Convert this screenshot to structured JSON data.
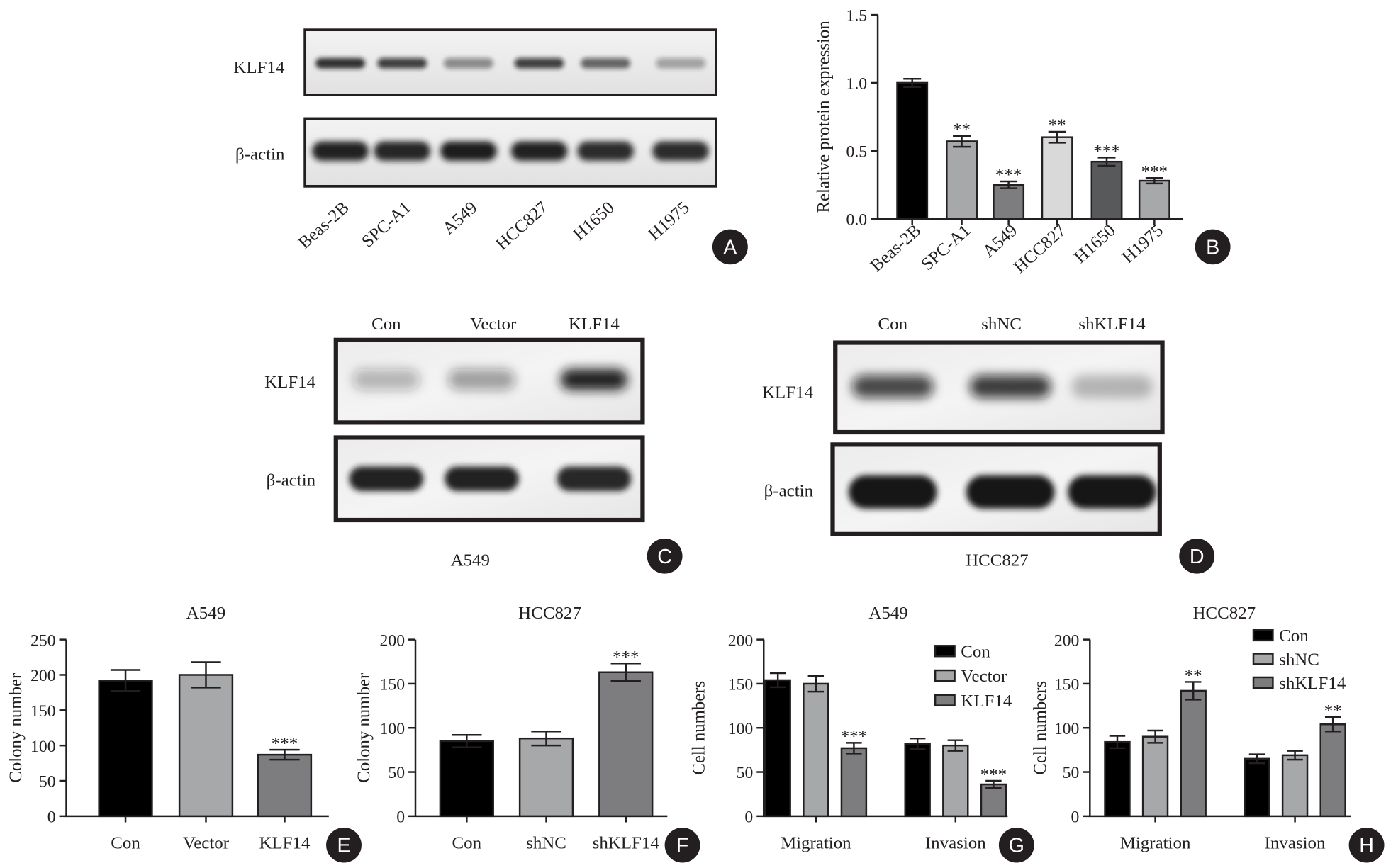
{
  "panel_labels": [
    "A",
    "B",
    "C",
    "D",
    "E",
    "F",
    "G",
    "H"
  ],
  "panel_a": {
    "row_labels": [
      "KLF14",
      "β-actin"
    ],
    "lanes": [
      {
        "label": "Beas-2B",
        "klf14_band": 0.88,
        "actin_band": 0.95
      },
      {
        "label": "SPC-A1",
        "klf14_band": 0.78,
        "actin_band": 0.93
      },
      {
        "label": "A549",
        "klf14_band": 0.45,
        "actin_band": 0.97
      },
      {
        "label": "HCC827",
        "klf14_band": 0.78,
        "actin_band": 0.95
      },
      {
        "label": "H1650",
        "klf14_band": 0.62,
        "actin_band": 0.9
      },
      {
        "label": "H1975",
        "klf14_band": 0.35,
        "actin_band": 0.9
      }
    ]
  },
  "panel_c": {
    "cell_line": "A549",
    "row_labels": [
      "KLF14",
      "β-actin"
    ],
    "lanes": [
      {
        "label": "Con",
        "klf14_band": 0.28,
        "actin_band": 0.95
      },
      {
        "label": "Vector",
        "klf14_band": 0.38,
        "actin_band": 0.95
      },
      {
        "label": "KLF14",
        "klf14_band": 0.95,
        "actin_band": 0.92
      }
    ]
  },
  "panel_d": {
    "cell_line": "HCC827",
    "row_labels": [
      "KLF14",
      "β-actin"
    ],
    "lanes": [
      {
        "label": "Con",
        "klf14_band": 0.75,
        "actin_band": 1.0
      },
      {
        "label": "shNC",
        "klf14_band": 0.8,
        "actin_band": 1.0
      },
      {
        "label": "shKLF14",
        "klf14_band": 0.25,
        "actin_band": 1.0
      }
    ]
  },
  "chart_data": [
    {
      "letter": "B",
      "type": "bar",
      "categories": [
        "Beas-2B",
        "SPC-A1",
        "A549",
        "HCC827",
        "H1650",
        "H1975"
      ],
      "values": [
        1.0,
        0.57,
        0.25,
        0.6,
        0.42,
        0.28
      ],
      "errors": [
        0.03,
        0.04,
        0.025,
        0.04,
        0.03,
        0.02
      ],
      "significance": [
        "",
        "**",
        "***",
        "**",
        "***",
        "***"
      ],
      "bar_colors": [
        "#000000",
        "#a7a8aa",
        "#7d7d7f",
        "#d9d9d9",
        "#58595b",
        "#a7a8aa"
      ],
      "ylabel": "Relative protein expression",
      "ylim": [
        0,
        1.5
      ],
      "yticks": [
        0,
        0.5,
        1.0,
        1.5
      ],
      "ytick_labels": [
        "0.0",
        "0.5",
        "1.0",
        "1.5"
      ]
    },
    {
      "letter": "E",
      "type": "bar",
      "title": "A549",
      "categories": [
        "Con",
        "Vector",
        "KLF14"
      ],
      "values": [
        192,
        200,
        87
      ],
      "errors": [
        15,
        18,
        7
      ],
      "significance": [
        "",
        "",
        "***"
      ],
      "bar_colors": [
        "#000000",
        "#a7a8aa",
        "#7d7d7f"
      ],
      "ylabel": "Colony number",
      "ylim": [
        0,
        250
      ],
      "yticks": [
        0,
        50,
        100,
        150,
        200,
        250
      ],
      "ytick_labels": [
        "0",
        "50",
        "100",
        "150",
        "200",
        "250"
      ]
    },
    {
      "letter": "F",
      "type": "bar",
      "title": "HCC827",
      "categories": [
        "Con",
        "shNC",
        "shKLF14"
      ],
      "values": [
        85,
        88,
        163
      ],
      "errors": [
        7,
        8,
        10
      ],
      "significance": [
        "",
        "",
        "***"
      ],
      "bar_colors": [
        "#000000",
        "#a7a8aa",
        "#7d7d7f"
      ],
      "ylabel": "Colony number",
      "ylim": [
        0,
        200
      ],
      "yticks": [
        0,
        50,
        100,
        150,
        200
      ],
      "ytick_labels": [
        "0",
        "50",
        "100",
        "150",
        "200"
      ]
    },
    {
      "letter": "G",
      "type": "bar",
      "title": "A549",
      "categories": [
        "Migration",
        "Invasion"
      ],
      "series": [
        {
          "name": "Con",
          "values": [
            154,
            82
          ],
          "errors": [
            8,
            6
          ],
          "significance": [
            "",
            ""
          ],
          "color": "#000000"
        },
        {
          "name": "Vector",
          "values": [
            150,
            80
          ],
          "errors": [
            9,
            6
          ],
          "significance": [
            "",
            ""
          ],
          "color": "#a7a8aa"
        },
        {
          "name": "KLF14",
          "values": [
            77,
            36
          ],
          "errors": [
            6,
            4
          ],
          "significance": [
            "***",
            "***"
          ],
          "color": "#7d7d7f"
        }
      ],
      "ylabel": "Cell numbers",
      "ylim": [
        0,
        200
      ],
      "yticks": [
        0,
        50,
        100,
        150,
        200
      ],
      "ytick_labels": [
        "0",
        "50",
        "100",
        "150",
        "200"
      ],
      "legend": "top-right"
    },
    {
      "letter": "H",
      "type": "bar",
      "title": "HCC827",
      "categories": [
        "Migration",
        "Invasion"
      ],
      "series": [
        {
          "name": "Con",
          "values": [
            84,
            65
          ],
          "errors": [
            7,
            5
          ],
          "significance": [
            "",
            ""
          ],
          "color": "#000000"
        },
        {
          "name": "shNC",
          "values": [
            90,
            69
          ],
          "errors": [
            7,
            5
          ],
          "significance": [
            "",
            ""
          ],
          "color": "#a7a8aa"
        },
        {
          "name": "shKLF14",
          "values": [
            142,
            104
          ],
          "errors": [
            10,
            8
          ],
          "significance": [
            "**",
            "**"
          ],
          "color": "#7d7d7f"
        }
      ],
      "ylabel": "Cell numbers",
      "ylim": [
        0,
        200
      ],
      "yticks": [
        0,
        50,
        100,
        150,
        200
      ],
      "ytick_labels": [
        "0",
        "50",
        "100",
        "150",
        "200"
      ],
      "legend": "top-right"
    }
  ]
}
